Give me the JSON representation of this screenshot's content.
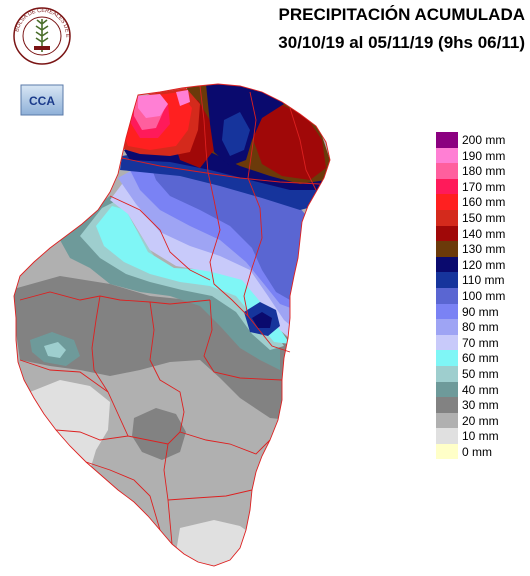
{
  "header": {
    "title": "PRECIPITACIÓN ACUMULADA",
    "period": "30/10/19  al 05/11/19 (9hs 06/11)"
  },
  "logos": {
    "seal_text": "BOLSA DE CEREALES DE ENTRE RIOS",
    "cca_text": "CCA"
  },
  "legend": {
    "items": [
      {
        "label": "200 mm",
        "color": "#8b0080"
      },
      {
        "label": "190 mm",
        "color": "#ff7fd4"
      },
      {
        "label": "180 mm",
        "color": "#ff5f9e"
      },
      {
        "label": "170 mm",
        "color": "#ff1a5a"
      },
      {
        "label": "160 mm",
        "color": "#ff2020"
      },
      {
        "label": "150 mm",
        "color": "#d42a1c"
      },
      {
        "label": "140 mm",
        "color": "#a00808"
      },
      {
        "label": "130 mm",
        "color": "#6b3a0a"
      },
      {
        "label": "120 mm",
        "color": "#0a0a6e"
      },
      {
        "label": "110 mm",
        "color": "#16349c"
      },
      {
        "label": "100 mm",
        "color": "#5a66d2"
      },
      {
        "label": "90 mm",
        "color": "#7a82f4"
      },
      {
        "label": "80 mm",
        "color": "#9ea4f4"
      },
      {
        "label": "70 mm",
        "color": "#c8cafa"
      },
      {
        "label": "60 mm",
        "color": "#7ff6f6"
      },
      {
        "label": "50 mm",
        "color": "#9ecece"
      },
      {
        "label": "40 mm",
        "color": "#6e9a9a"
      },
      {
        "label": "30 mm",
        "color": "#828282"
      },
      {
        "label": "20 mm",
        "color": "#b0b0b0"
      },
      {
        "label": "10 mm",
        "color": "#e0e0e0"
      },
      {
        "label": "0 mm",
        "color": "#ffffc8"
      }
    ]
  },
  "colors": {
    "border": "#dd2020"
  }
}
